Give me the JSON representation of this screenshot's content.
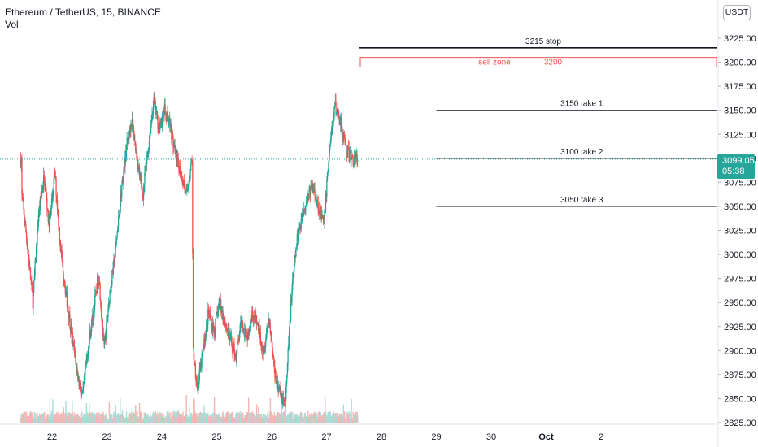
{
  "legend": {
    "symbol_line": "Ethereum / TetherUS, 15, BINANCE",
    "volume_label": "Vol"
  },
  "currency": "USDT",
  "last_price": {
    "value": "3099.05",
    "countdown": "05:38"
  },
  "colors": {
    "up": "#26a69a",
    "down": "#ef5350",
    "vol_up": "#a8dcd6",
    "vol_down": "#f5b5b3",
    "level_line": "#131722",
    "sell_zone": "#ef5350",
    "dotted_price": "#26a69a"
  },
  "chart_data": {
    "type": "candlestick",
    "y_axis": {
      "min": 2825,
      "max": 3250,
      "ticks": [
        "3225.00",
        "3200.00",
        "3175.00",
        "3150.00",
        "3125.00",
        "3100.00",
        "3075.00",
        "3050.00",
        "3025.00",
        "3000.00",
        "2975.00",
        "2950.00",
        "2925.00",
        "2900.00",
        "2875.00",
        "2850.00",
        "2825.00"
      ]
    },
    "x_axis": {
      "ticks": [
        "22",
        "23",
        "24",
        "25",
        "26",
        "27",
        "28",
        "29",
        "30",
        "Oct",
        "2"
      ]
    },
    "price_path": [
      [
        21.45,
        3060
      ],
      [
        21.55,
        3010
      ],
      [
        21.65,
        2950
      ],
      [
        21.75,
        3040
      ],
      [
        21.85,
        3080
      ],
      [
        21.95,
        3030
      ],
      [
        22.05,
        3085
      ],
      [
        22.15,
        3010
      ],
      [
        22.25,
        2960
      ],
      [
        22.35,
        2920
      ],
      [
        22.45,
        2880
      ],
      [
        22.55,
        2850
      ],
      [
        22.65,
        2900
      ],
      [
        22.75,
        2940
      ],
      [
        22.85,
        2980
      ],
      [
        22.95,
        2900
      ],
      [
        23.05,
        2960
      ],
      [
        23.15,
        3000
      ],
      [
        23.25,
        3060
      ],
      [
        23.35,
        3110
      ],
      [
        23.45,
        3140
      ],
      [
        23.55,
        3100
      ],
      [
        23.65,
        3060
      ],
      [
        23.75,
        3110
      ],
      [
        23.85,
        3160
      ],
      [
        23.95,
        3130
      ],
      [
        24.05,
        3150
      ],
      [
        24.15,
        3135
      ],
      [
        24.25,
        3100
      ],
      [
        24.35,
        3085
      ],
      [
        24.45,
        3060
      ],
      [
        24.55,
        3100
      ],
      [
        24.57,
        2900
      ],
      [
        24.65,
        2860
      ],
      [
        24.75,
        2900
      ],
      [
        24.85,
        2940
      ],
      [
        24.95,
        2920
      ],
      [
        25.05,
        2950
      ],
      [
        25.15,
        2930
      ],
      [
        25.25,
        2910
      ],
      [
        25.35,
        2895
      ],
      [
        25.45,
        2930
      ],
      [
        25.55,
        2915
      ],
      [
        25.65,
        2940
      ],
      [
        25.75,
        2925
      ],
      [
        25.85,
        2900
      ],
      [
        25.95,
        2935
      ],
      [
        26.05,
        2880
      ],
      [
        26.15,
        2855
      ],
      [
        26.25,
        2845
      ],
      [
        26.35,
        2950
      ],
      [
        26.45,
        3010
      ],
      [
        26.55,
        3040
      ],
      [
        26.65,
        3060
      ],
      [
        26.75,
        3070
      ],
      [
        26.85,
        3050
      ],
      [
        26.95,
        3030
      ],
      [
        27.05,
        3110
      ],
      [
        27.15,
        3155
      ],
      [
        27.25,
        3140
      ],
      [
        27.35,
        3110
      ],
      [
        27.45,
        3100
      ],
      [
        27.58,
        3099
      ]
    ],
    "volume": {
      "baseline_level": "low",
      "spikes_on_days": [
        "24",
        "25",
        "26",
        "27"
      ]
    },
    "annotations": [
      {
        "label": "3215 stop",
        "price": 3215,
        "x_from": "27.6",
        "style": "solid"
      },
      {
        "label": "3150 take 1",
        "price": 3150,
        "x_from": "29",
        "style": "solid"
      },
      {
        "label": "3100 take 2",
        "price": 3100,
        "x_from": "29",
        "style": "solid"
      },
      {
        "label": "3050 take 3",
        "price": 3050,
        "x_from": "29",
        "style": "solid"
      }
    ],
    "sell_zone": {
      "label": "sell zone",
      "value_label": "3200",
      "price_top": 3205,
      "price_bottom": 3195,
      "x_from": "27.6"
    },
    "current_price": 3099.05
  }
}
